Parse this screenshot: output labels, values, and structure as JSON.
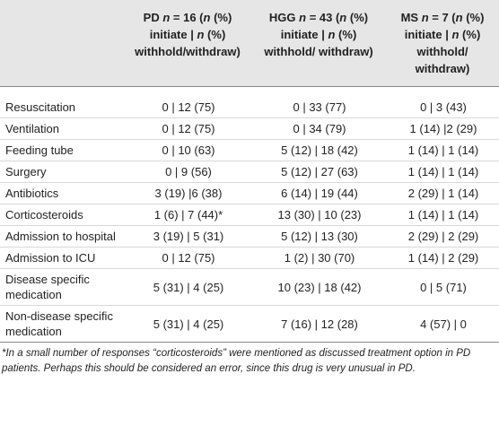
{
  "table": {
    "columns": [
      [
        {
          "text": "PD "
        },
        {
          "text": "n",
          "italic": true
        },
        {
          "text": " = 16 ("
        },
        {
          "text": "n",
          "italic": true
        },
        {
          "text": " (%) initiate | "
        },
        {
          "text": "n",
          "italic": true
        },
        {
          "text": " (%) withhold/withdraw)"
        }
      ],
      [
        {
          "text": "HGG "
        },
        {
          "text": "n",
          "italic": true
        },
        {
          "text": " = 43 ("
        },
        {
          "text": "n",
          "italic": true
        },
        {
          "text": " (%) initiate | "
        },
        {
          "text": "n",
          "italic": true
        },
        {
          "text": " (%) withhold/ withdraw)"
        }
      ],
      [
        {
          "text": "MS "
        },
        {
          "text": "n",
          "italic": true
        },
        {
          "text": " = 7 ("
        },
        {
          "text": "n",
          "italic": true
        },
        {
          "text": " (%) initiate | "
        },
        {
          "text": "n",
          "italic": true
        },
        {
          "text": " (%) withhold/ withdraw)"
        }
      ]
    ],
    "rows": [
      [
        "Resuscitation",
        "0 | 12 (75)",
        "0 | 33 (77)",
        "0 | 3 (43)"
      ],
      [
        "Ventilation",
        "0 | 12 (75)",
        "0 | 34 (79)",
        "1 (14) |2 (29)"
      ],
      [
        "Feeding tube",
        "0 | 10 (63)",
        "5 (12) | 18 (42)",
        "1 (14) | 1 (14)"
      ],
      [
        "Surgery",
        "0 | 9 (56)",
        "5 (12) | 27 (63)",
        "1 (14) | 1 (14)"
      ],
      [
        "Antibiotics",
        "3 (19) |6 (38)",
        "6 (14) | 19 (44)",
        "2 (29) | 1 (14)"
      ],
      [
        "Corticosteroids",
        "1 (6) | 7 (44)*",
        "13 (30) | 10 (23)",
        "1 (14) | 1 (14)"
      ],
      [
        "Admission to hospital",
        "3 (19) | 5 (31)",
        "5 (12) | 13 (30)",
        "2 (29) | 2 (29)"
      ],
      [
        "Admission to ICU",
        "0 | 12 (75)",
        "1 (2) | 30 (70)",
        "1 (14) | 2 (29)"
      ],
      [
        "Disease specific medication",
        "5 (31) | 4 (25)",
        "10 (23) | 18 (42)",
        "0 | 5 (71)"
      ],
      [
        "Non-disease specific medication",
        "5 (31) | 4 (25)",
        "7 (16) | 12 (28)",
        "4 (57) | 0"
      ]
    ],
    "footnote": "*In a small number of responses “corticosteroids” were mentioned as discussed treatment option in PD patients. Perhaps this should be considered an error, since this drug is very unusual in PD."
  }
}
